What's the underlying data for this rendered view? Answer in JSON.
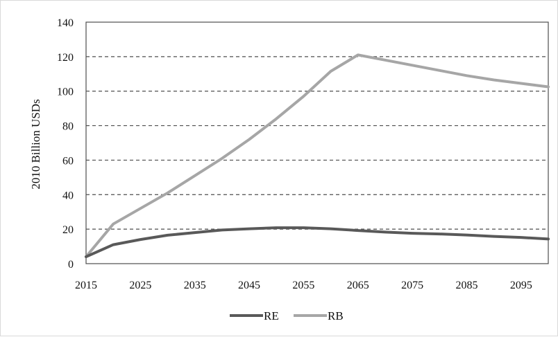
{
  "chart_data": {
    "type": "line",
    "title": "",
    "xlabel": "",
    "ylabel": "2010 Billion USDs",
    "x": [
      2015,
      2020,
      2025,
      2030,
      2035,
      2040,
      2045,
      2050,
      2055,
      2060,
      2065,
      2070,
      2075,
      2080,
      2085,
      2090,
      2095,
      2100
    ],
    "x_ticks": [
      "2015",
      "2025",
      "2035",
      "2045",
      "2055",
      "2065",
      "2075",
      "2085",
      "2095"
    ],
    "y_ticks": [
      "0",
      "20",
      "40",
      "60",
      "80",
      "100",
      "120",
      "140"
    ],
    "xlim": [
      2015,
      2100
    ],
    "ylim": [
      0,
      140
    ],
    "grid": "horizontal dashed",
    "legend_position": "bottom",
    "series": [
      {
        "name": "RE",
        "color": "#595959",
        "values": [
          4,
          11,
          14,
          16.5,
          18,
          19.5,
          20.2,
          20.8,
          20.8,
          20.2,
          19.2,
          18.3,
          17.6,
          17.2,
          16.6,
          15.8,
          15.2,
          14.3
        ]
      },
      {
        "name": "RB",
        "color": "#a6a6a6",
        "values": [
          4,
          23,
          32,
          41,
          51,
          61,
          72,
          84,
          97,
          111.5,
          121,
          118,
          115,
          112,
          109,
          106.5,
          104.5,
          102.5
        ]
      }
    ]
  }
}
